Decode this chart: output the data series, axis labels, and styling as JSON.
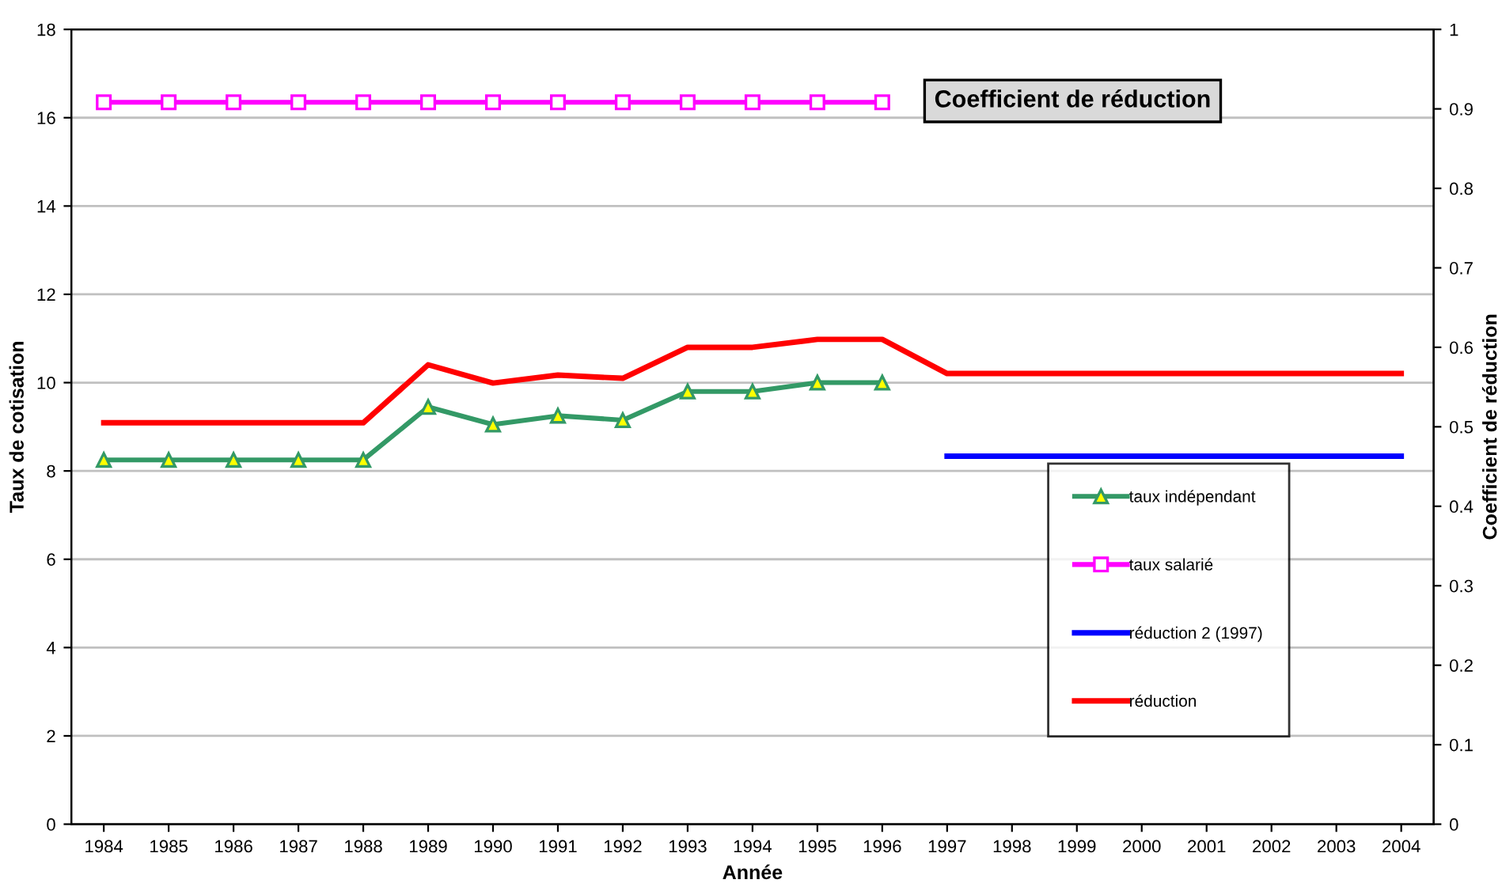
{
  "chart_data": {
    "type": "line",
    "title": "Coefficient de réduction",
    "xlabel": "Année",
    "ylabel": "Taux de cotisation",
    "y2label": "Coefficient de réduction",
    "categories": [
      "1984",
      "1985",
      "1986",
      "1987",
      "1988",
      "1989",
      "1990",
      "1991",
      "1992",
      "1993",
      "1994",
      "1995",
      "1996",
      "1997",
      "1998",
      "1999",
      "2000",
      "2001",
      "2002",
      "2003",
      "2004"
    ],
    "series": [
      {
        "name": "taux indépendant",
        "color": "#339966",
        "marker": "triangle",
        "values": [
          8.25,
          8.25,
          8.25,
          8.25,
          8.25,
          9.45,
          9.05,
          9.25,
          9.15,
          9.8,
          9.8,
          10.0,
          10.0,
          null,
          null,
          null,
          null,
          null,
          null,
          null,
          null
        ]
      },
      {
        "name": "taux salarié",
        "color": "#ff00ff",
        "marker": "square",
        "values": [
          16.35,
          16.35,
          16.35,
          16.35,
          16.35,
          16.35,
          16.35,
          16.35,
          16.35,
          16.35,
          16.35,
          16.35,
          16.35,
          null,
          null,
          null,
          null,
          null,
          null,
          null,
          null
        ]
      },
      {
        "name": "réduction 2 (1997)",
        "color": "#0000ff",
        "axis": "y2",
        "values": [
          null,
          null,
          null,
          null,
          null,
          null,
          null,
          null,
          null,
          null,
          null,
          null,
          null,
          0.463,
          0.463,
          0.463,
          0.463,
          0.463,
          0.463,
          0.463,
          0.463
        ]
      },
      {
        "name": "réduction",
        "color": "#ff0000",
        "axis": "y2",
        "values": [
          0.505,
          0.505,
          0.505,
          0.505,
          0.505,
          0.578,
          0.555,
          0.565,
          0.561,
          0.6,
          0.6,
          0.61,
          0.61,
          0.567,
          0.567,
          0.567,
          0.567,
          0.567,
          0.567,
          0.567,
          0.567
        ]
      }
    ],
    "ylim": [
      0,
      18
    ],
    "yticks": [
      0,
      2,
      4,
      6,
      8,
      10,
      12,
      14,
      16,
      18
    ],
    "y2lim": [
      0,
      1
    ],
    "y2ticks": [
      0,
      0.1,
      0.2,
      0.3,
      0.4,
      0.5,
      0.6,
      0.7,
      0.8,
      0.9,
      1
    ],
    "grid": "y",
    "legend": "lower right"
  }
}
